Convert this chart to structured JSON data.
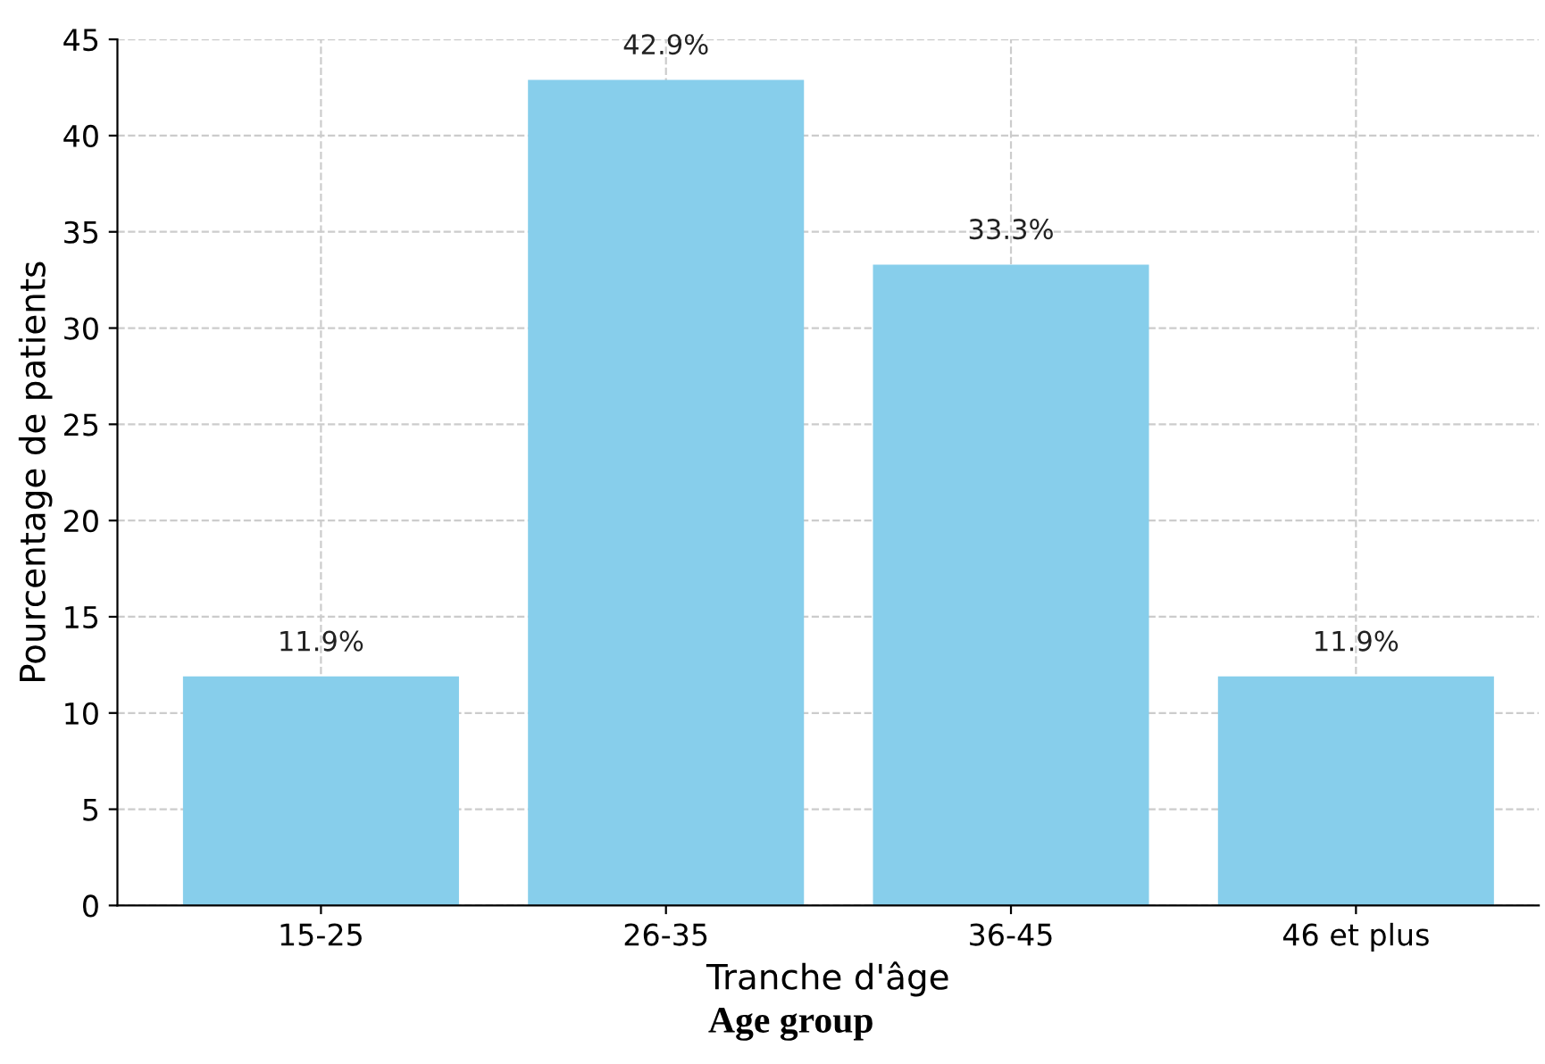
{
  "chart_data": {
    "type": "bar",
    "xlabel": "Tranche d'âge",
    "ylabel": "Pourcentage de patients",
    "categories": [
      "15-25",
      "26-35",
      "36-45",
      "46 et plus"
    ],
    "values": [
      11.9,
      42.9,
      33.3,
      11.9
    ],
    "value_labels": [
      "11.9%",
      "42.9%",
      "33.3%",
      "11.9%"
    ],
    "color": "#87ceeb",
    "ylim": [
      0,
      45
    ],
    "yticks": [
      0,
      5,
      10,
      15,
      20,
      25,
      30,
      35,
      40,
      45
    ],
    "grid": true,
    "annotations": [
      "Age group"
    ]
  }
}
